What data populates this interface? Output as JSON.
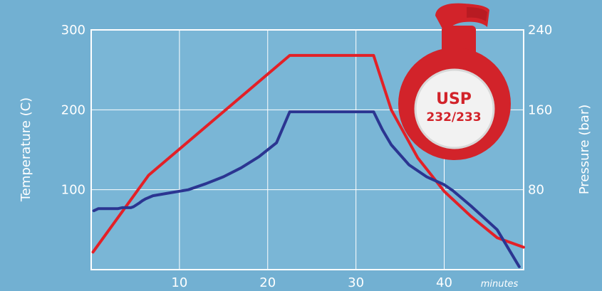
{
  "chart_data": {
    "type": "line",
    "xlabel": "minutes",
    "ylabel_left": "Temperature (C)",
    "ylabel_right": "Pressure (bar)",
    "xlim": [
      0,
      49
    ],
    "ylim_left": [
      0,
      300
    ],
    "ylim_right": [
      0,
      240
    ],
    "x_ticks": [
      10,
      20,
      30,
      40
    ],
    "y_ticks_left": [
      100,
      200,
      300
    ],
    "y_ticks_right": [
      80,
      160,
      240
    ],
    "grid": true,
    "series": [
      {
        "axis": "left",
        "color": "#e32027",
        "points": [
          [
            0.2,
            22
          ],
          [
            6.5,
            118
          ],
          [
            22.5,
            268
          ],
          [
            32,
            268
          ],
          [
            34,
            200
          ],
          [
            37,
            140
          ],
          [
            40,
            98
          ],
          [
            43,
            67
          ],
          [
            46,
            40
          ],
          [
            49,
            28
          ]
        ]
      },
      {
        "axis": "right",
        "color": "#2b3591",
        "points": [
          [
            0.3,
            59
          ],
          [
            0.8,
            61
          ],
          [
            2.5,
            61
          ],
          [
            3.0,
            61
          ],
          [
            3.5,
            62
          ],
          [
            4.5,
            62
          ],
          [
            4.8,
            63
          ],
          [
            5.5,
            67
          ],
          [
            5.8,
            69
          ],
          [
            6.2,
            71
          ],
          [
            7,
            74
          ],
          [
            9,
            77
          ],
          [
            11,
            80
          ],
          [
            13,
            86
          ],
          [
            15,
            93
          ],
          [
            17,
            102
          ],
          [
            19,
            113
          ],
          [
            21,
            127
          ],
          [
            22.5,
            158
          ],
          [
            32,
            158
          ],
          [
            33,
            140
          ],
          [
            34,
            125
          ],
          [
            36,
            105
          ],
          [
            38,
            93
          ],
          [
            40,
            85
          ],
          [
            41,
            79
          ],
          [
            43,
            64
          ],
          [
            46,
            40
          ],
          [
            48.5,
            3
          ]
        ]
      }
    ],
    "badge": {
      "line1": "USP",
      "line2": "232/233"
    }
  },
  "colors": {
    "background": "#72b0d2",
    "plot_area": "#7ab6d6",
    "badge_red": "#d2232a"
  }
}
